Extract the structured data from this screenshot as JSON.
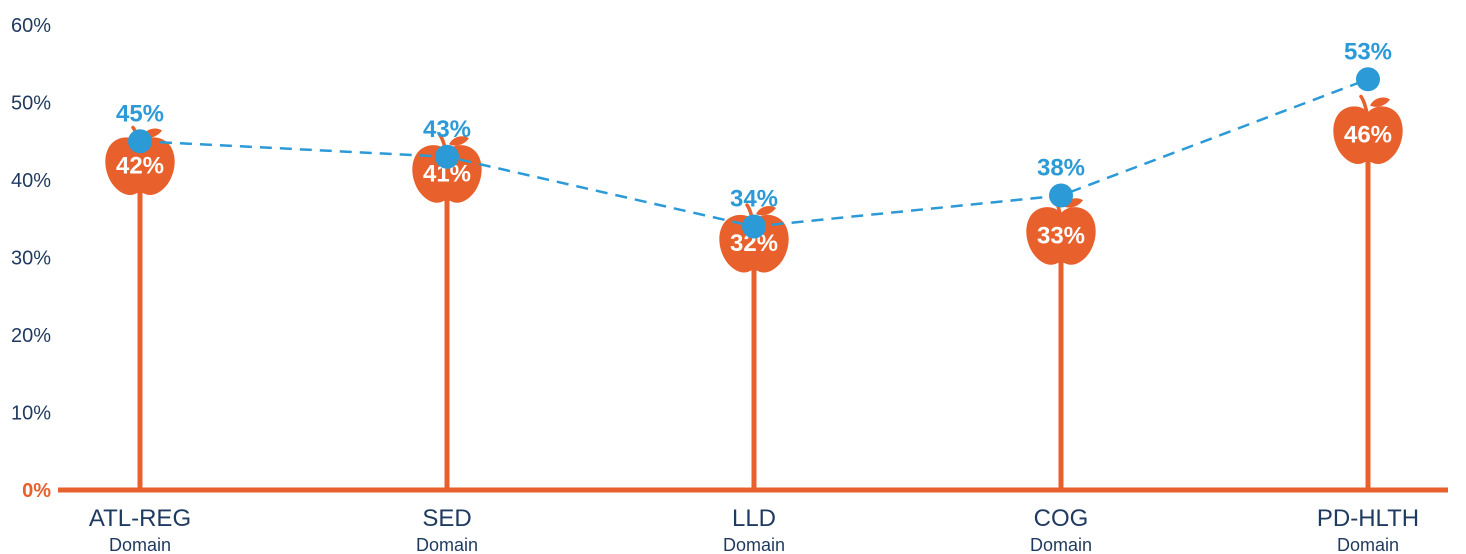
{
  "chart_data": {
    "type": "line",
    "categories": [
      "ATL-REG",
      "SED",
      "LLD",
      "COG",
      "PD-HLTH"
    ],
    "category_sublabel": "Domain",
    "ylim": [
      0,
      60
    ],
    "y_ticks": [
      "0%",
      "10%",
      "20%",
      "30%",
      "40%",
      "50%",
      "60%"
    ],
    "series": [
      {
        "values": [
          42,
          41,
          32,
          33,
          46
        ],
        "labels": [
          "42%",
          "41%",
          "32%",
          "33%",
          "46%"
        ],
        "style": "apple-lollipop"
      },
      {
        "values": [
          45,
          43,
          34,
          38,
          53
        ],
        "labels": [
          "45%",
          "43%",
          "34%",
          "38%",
          "53%"
        ],
        "style": "dashed-line-dots"
      }
    ],
    "grid": false,
    "legend": "none"
  },
  "colors": {
    "apple": "#e8602c",
    "line": "#2b9ad6",
    "text": "#1f3a5f",
    "axis": "#e8602c"
  }
}
